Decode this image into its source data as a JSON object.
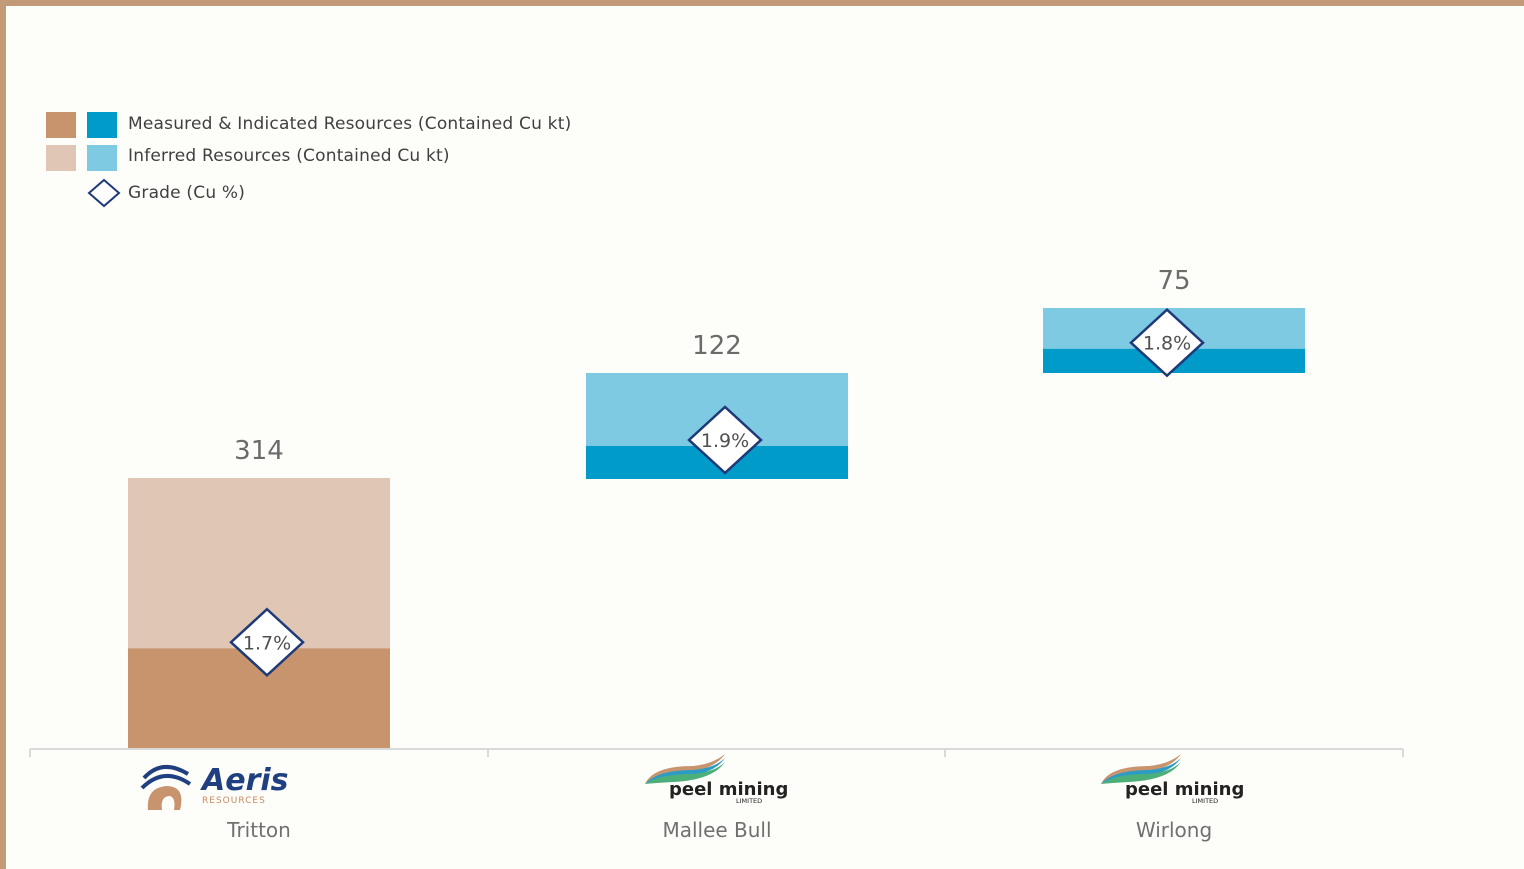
{
  "chart_data": {
    "type": "bar",
    "stacked": true,
    "categories": [
      "Tritton",
      "Mallee Bull",
      "Wirlong"
    ],
    "series": [
      {
        "name": "Measured & Indicated Resources (Contained Cu kt)",
        "values": [
          116,
          38,
          28
        ],
        "colors": [
          "#c8946e",
          "#009bc8",
          "#009bc8"
        ]
      },
      {
        "name": "Inferred Resources (Contained Cu kt)",
        "values": [
          198,
          84,
          47
        ],
        "colors": [
          "#e0c6b4",
          "#7fcae3",
          "#7fcae3"
        ]
      }
    ],
    "totals": [
      "314",
      "122",
      "75"
    ],
    "grade": {
      "name": "Grade (Cu %)",
      "values": [
        1.7,
        1.9,
        1.8
      ],
      "labels": [
        "1.7%",
        "1.9%",
        "1.8%"
      ]
    },
    "legend_position": "top-left",
    "logos": [
      "Aeris Resources",
      "peel mining",
      "peel mining"
    ]
  },
  "legend": {
    "mi": "Measured & Indicated Resources (Contained Cu kt)",
    "inf": "Inferred Resources (Contained Cu kt)",
    "grade": "Grade (Cu %)"
  },
  "colors": {
    "frame": "#c39a78",
    "tritton_mi": "#c8946e",
    "tritton_inf": "#e0c6b4",
    "peel_mi": "#009bc8",
    "peel_inf": "#7fcae3",
    "diamond_stroke": "#1f3a78"
  },
  "logos": {
    "aeris": {
      "name": "Aeris",
      "sub": "RESOURCES"
    },
    "peel": {
      "name": "peel mining",
      "sub": "LIMITED"
    }
  }
}
